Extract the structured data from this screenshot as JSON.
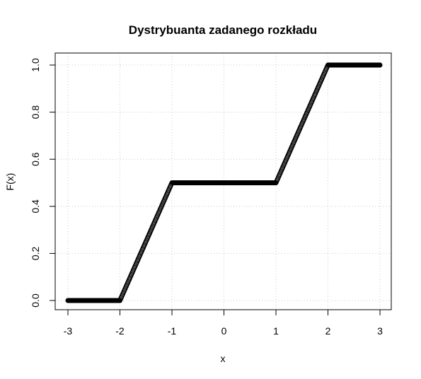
{
  "chart_data": {
    "type": "scatter",
    "title": "Dystrybuanta zadanego rozkładu",
    "xlabel": "x",
    "ylabel": "F(x)",
    "xlim": [
      -3,
      3
    ],
    "ylim": [
      0,
      1
    ],
    "x_ticks": [
      "-3",
      "-2",
      "-1",
      "0",
      "1",
      "2",
      "3"
    ],
    "y_ticks": [
      "0.0",
      "0.2",
      "0.4",
      "0.6",
      "0.8",
      "1.0"
    ],
    "grid": true,
    "marker": "open-circle",
    "color": "#000000",
    "grid_color": "#c8c8c8",
    "series": [
      {
        "x": [
          -3,
          -2,
          -1,
          1,
          2,
          3
        ],
        "y": [
          0,
          0,
          0.5,
          0.5,
          1,
          1
        ]
      }
    ]
  }
}
